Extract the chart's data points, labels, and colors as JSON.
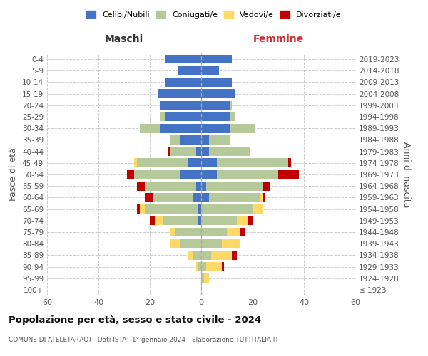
{
  "age_groups": [
    "100+",
    "95-99",
    "90-94",
    "85-89",
    "80-84",
    "75-79",
    "70-74",
    "65-69",
    "60-64",
    "55-59",
    "50-54",
    "45-49",
    "40-44",
    "35-39",
    "30-34",
    "25-29",
    "20-24",
    "15-19",
    "10-14",
    "5-9",
    "0-4"
  ],
  "birth_years": [
    "≤ 1923",
    "1924-1928",
    "1929-1933",
    "1934-1938",
    "1939-1943",
    "1944-1948",
    "1949-1953",
    "1954-1958",
    "1959-1963",
    "1964-1968",
    "1969-1973",
    "1974-1978",
    "1979-1983",
    "1984-1988",
    "1989-1993",
    "1994-1998",
    "1999-2003",
    "2004-2008",
    "2009-2013",
    "2014-2018",
    "2019-2023"
  ],
  "males": {
    "celibi": [
      0,
      0,
      0,
      0,
      0,
      0,
      1,
      1,
      3,
      2,
      8,
      5,
      2,
      8,
      16,
      14,
      16,
      17,
      14,
      9,
      14
    ],
    "coniugati": [
      0,
      0,
      1,
      3,
      8,
      10,
      14,
      21,
      16,
      20,
      18,
      20,
      10,
      4,
      8,
      2,
      0,
      0,
      0,
      0,
      0
    ],
    "vedovi": [
      0,
      0,
      1,
      2,
      4,
      2,
      3,
      2,
      0,
      0,
      0,
      1,
      0,
      0,
      0,
      0,
      0,
      0,
      0,
      0,
      0
    ],
    "divorziati": [
      0,
      0,
      0,
      0,
      0,
      0,
      2,
      1,
      3,
      3,
      3,
      0,
      1,
      0,
      0,
      0,
      0,
      0,
      0,
      0,
      0
    ]
  },
  "females": {
    "nubili": [
      0,
      0,
      0,
      0,
      0,
      0,
      0,
      0,
      3,
      2,
      6,
      6,
      3,
      3,
      11,
      11,
      11,
      13,
      12,
      7,
      12
    ],
    "coniugate": [
      0,
      1,
      2,
      4,
      8,
      10,
      14,
      20,
      20,
      22,
      24,
      28,
      16,
      8,
      10,
      2,
      1,
      0,
      0,
      0,
      0
    ],
    "vedove": [
      0,
      2,
      6,
      8,
      7,
      5,
      4,
      4,
      1,
      0,
      0,
      0,
      0,
      0,
      0,
      0,
      0,
      0,
      0,
      0,
      0
    ],
    "divorziate": [
      0,
      0,
      1,
      2,
      0,
      2,
      2,
      0,
      1,
      3,
      8,
      1,
      0,
      0,
      0,
      0,
      0,
      0,
      0,
      0,
      0
    ]
  },
  "colors": {
    "celibi": "#4472c4",
    "coniugati": "#b5c99a",
    "vedovi": "#ffd966",
    "divorziati": "#c00000"
  },
  "xlim": 60,
  "title": "Popolazione per età, sesso e stato civile - 2024",
  "subtitle": "COMUNE DI ATELETA (AQ) - Dati ISTAT 1° gennaio 2024 - Elaborazione TUTTITALIA.IT",
  "ylabel": "Fasce di età",
  "right_ylabel": "Anni di nascita",
  "xlabel_left": "Maschi",
  "xlabel_right": "Femmine"
}
